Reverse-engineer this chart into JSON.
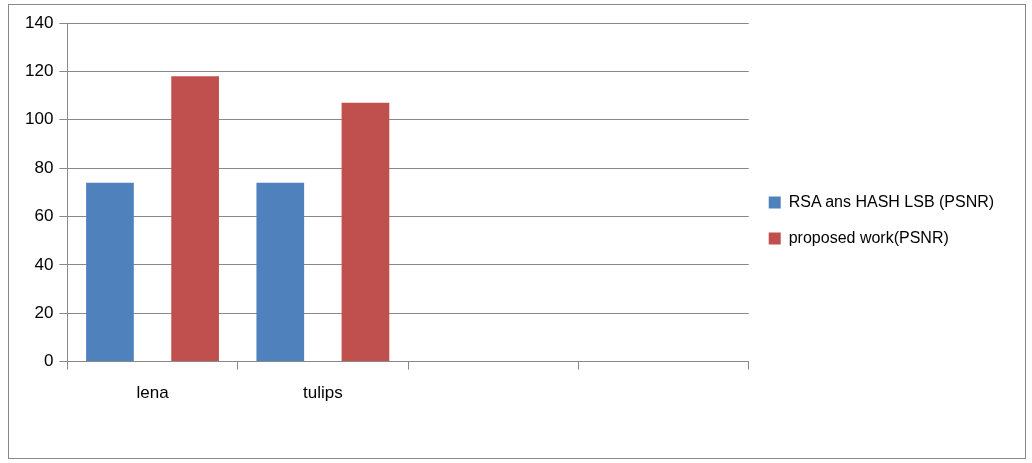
{
  "chart_data": {
    "type": "bar",
    "categories": [
      "lena",
      "tulips",
      null,
      null
    ],
    "series": [
      {
        "name": "RSA ans HASH LSB (PSNR)",
        "color": "#4f81bd",
        "values": [
          74,
          74,
          null,
          null
        ]
      },
      {
        "name": "proposed work(PSNR)",
        "color": "#c0504d",
        "values": [
          118,
          107,
          null,
          null
        ]
      }
    ],
    "ylim": [
      0,
      140
    ],
    "yticks": [
      0,
      20,
      40,
      60,
      80,
      100,
      120,
      140
    ],
    "grid": "y",
    "legend": "right"
  }
}
